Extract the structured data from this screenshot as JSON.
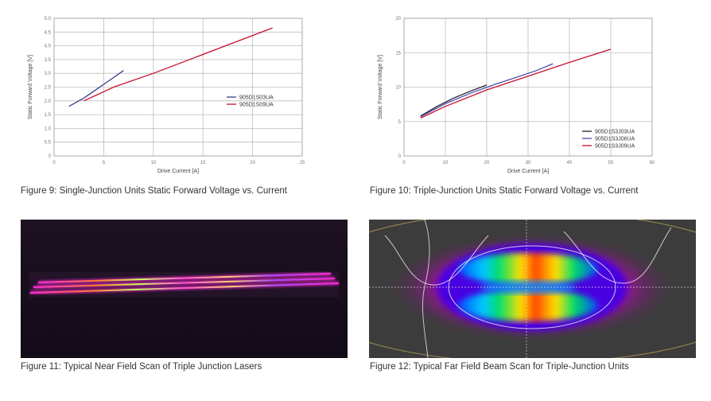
{
  "figures": {
    "fig9": {
      "caption": "Figure 9: Single-Junction Units Static Forward Voltage vs. Current"
    },
    "fig10": {
      "caption": "Figure 10: Triple-Junction Units Static Forward Voltage vs. Current"
    },
    "fig11": {
      "caption": "Figure 11: Typical Near Field Scan of Triple Junction Lasers"
    },
    "fig12": {
      "caption": "Figure 12: Typical Far Field Beam Scan for Triple-Junction Units"
    }
  },
  "chart_data": [
    {
      "type": "line",
      "xlabel": "Drive Current [A]",
      "ylabel": "Static Forward Voltage [V]",
      "xlim": [
        0,
        25
      ],
      "ylim": [
        0,
        5.0
      ],
      "x_ticks": [
        "0",
        "5",
        "10",
        "15",
        "20",
        "25"
      ],
      "y_ticks": [
        "0",
        "0.5",
        "1.0",
        "1.5",
        "2.0",
        "2.5",
        "3.0",
        "3.5",
        "4.0",
        "4.5",
        "5.0"
      ],
      "grid": true,
      "legend_position": "right",
      "series": [
        {
          "name": "905D1S03UA",
          "color": "#3a3f8f",
          "points": [
            [
              1.5,
              1.8
            ],
            [
              3,
              2.1
            ],
            [
              5,
              2.6
            ],
            [
              7,
              3.1
            ]
          ]
        },
        {
          "name": "905D1S09UA",
          "color": "#c8102e",
          "points": [
            [
              3,
              2.0
            ],
            [
              6,
              2.5
            ],
            [
              10,
              3.0
            ],
            [
              14,
              3.55
            ],
            [
              18,
              4.1
            ],
            [
              22,
              4.65
            ]
          ]
        }
      ]
    },
    {
      "type": "line",
      "xlabel": "Drive Current [A]",
      "ylabel": "Static Forward Voltage [V]",
      "xlim": [
        0,
        60
      ],
      "ylim": [
        0,
        20
      ],
      "x_ticks": [
        "0",
        "10",
        "20",
        "30",
        "40",
        "50",
        "60"
      ],
      "y_ticks": [
        "0",
        "5",
        "10",
        "15",
        "20"
      ],
      "grid": true,
      "legend_position": "bottom-right",
      "series": [
        {
          "name": "905D1S3J03UA",
          "color": "#1f1f33",
          "points": [
            [
              4,
              5.8
            ],
            [
              8,
              7.2
            ],
            [
              12,
              8.4
            ],
            [
              16,
              9.4
            ],
            [
              20,
              10.3
            ]
          ]
        },
        {
          "name": "905D1S3J06UA",
          "color": "#4a4fa8",
          "points": [
            [
              4,
              5.7
            ],
            [
              10,
              7.6
            ],
            [
              16,
              9.1
            ],
            [
              22,
              10.4
            ],
            [
              28,
              11.6
            ],
            [
              32,
              12.4
            ],
            [
              36,
              13.4
            ]
          ]
        },
        {
          "name": "905D1S3J09UA",
          "color": "#c8102e",
          "points": [
            [
              4,
              5.5
            ],
            [
              10,
              7.2
            ],
            [
              20,
              9.6
            ],
            [
              30,
              11.6
            ],
            [
              40,
              13.6
            ],
            [
              50,
              15.5
            ]
          ]
        }
      ]
    }
  ]
}
